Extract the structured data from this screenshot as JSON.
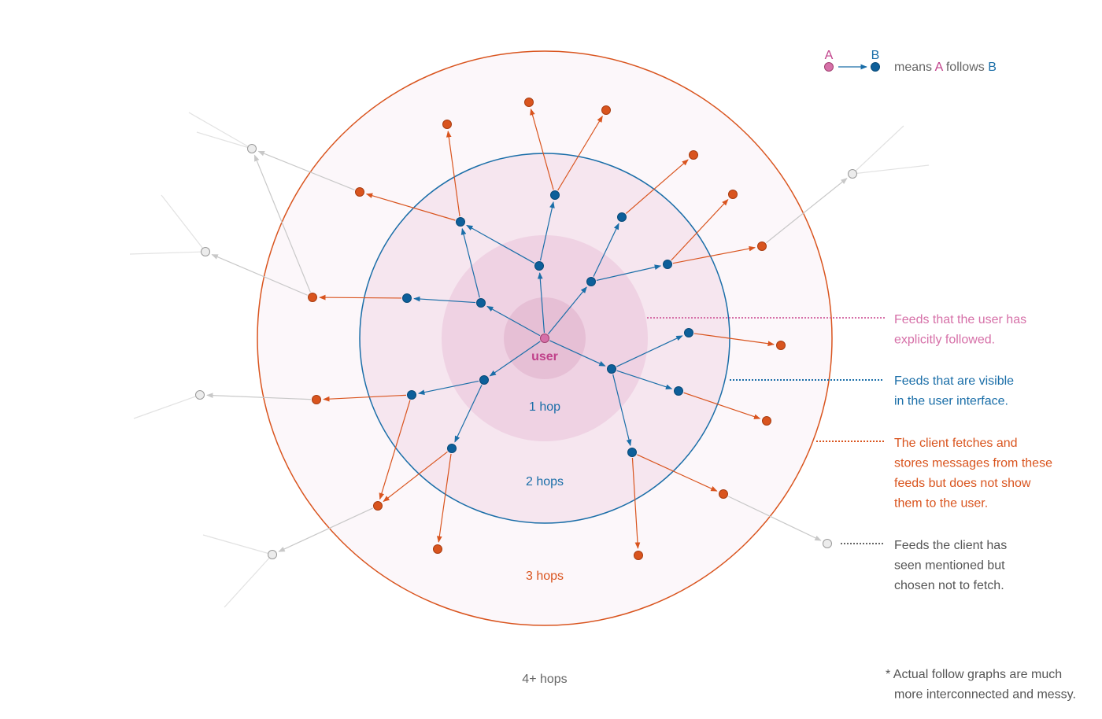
{
  "legend": {
    "a_label": "A",
    "b_label": "B",
    "means": "means",
    "a": "A",
    "follows": "follows",
    "b": "B"
  },
  "center_label": "user",
  "rings": [
    "1 hop",
    "2 hops",
    "3 hops",
    "4+ hops"
  ],
  "annotations": [
    {
      "lines": [
        "Feeds that the user has",
        "explicitly followed."
      ]
    },
    {
      "lines": [
        "Feeds that are visible",
        "in the user interface."
      ]
    },
    {
      "lines": [
        "The client fetches and",
        "stores messages from these",
        "feeds but does not show",
        "them to the user."
      ]
    },
    {
      "lines": [
        "Feeds the client has",
        "seen mentioned but",
        "chosen not to fetch."
      ]
    }
  ],
  "footnote": {
    "lines": [
      "* Actual follow graphs are much",
      "more interconnected and messy."
    ]
  }
}
